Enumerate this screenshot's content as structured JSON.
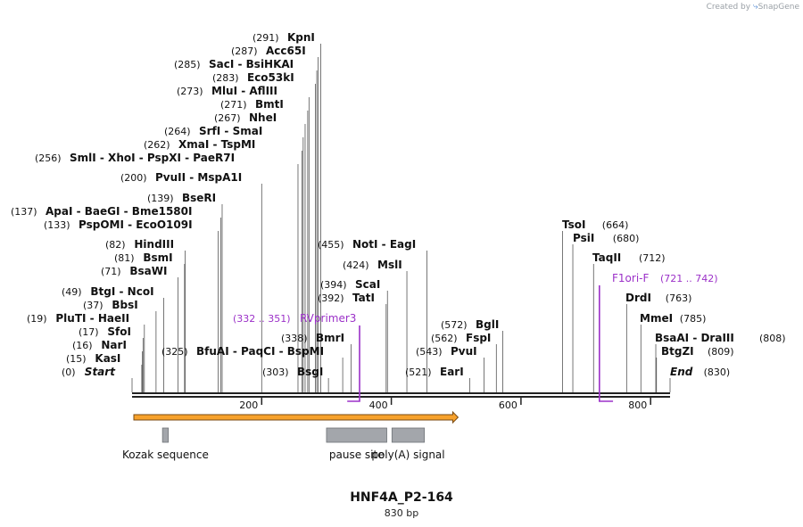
{
  "watermark": {
    "prefix": "Created by",
    "brand": "SnapGene"
  },
  "title": "HNF4A_P2-164",
  "length_label": "830 bp",
  "sequence_length": 830,
  "ruler": {
    "ticks": [
      "200",
      "400",
      "600",
      "800"
    ]
  },
  "colors": {
    "backbone": "#222222",
    "primer": "#9b30c8",
    "arrow_fill": "#f7a12b",
    "feature_box": "#a3a6ab",
    "leader": "#555555"
  },
  "sites": [
    {
      "pos": "(0)",
      "names": [
        "Start"
      ],
      "bp": 0,
      "italic": true
    },
    {
      "pos": "(15)",
      "names": [
        "KasI"
      ],
      "bp": 15
    },
    {
      "pos": "(16)",
      "names": [
        "NarI"
      ],
      "bp": 16
    },
    {
      "pos": "(17)",
      "names": [
        "SfoI"
      ],
      "bp": 17
    },
    {
      "pos": "(19)",
      "names": [
        "PluTI",
        "HaeII"
      ],
      "bp": 19
    },
    {
      "pos": "(37)",
      "names": [
        "BbsI"
      ],
      "bp": 37
    },
    {
      "pos": "(49)",
      "names": [
        "BtgI",
        "NcoI"
      ],
      "bp": 49
    },
    {
      "pos": "(71)",
      "names": [
        "BsaWI"
      ],
      "bp": 71
    },
    {
      "pos": "(81)",
      "names": [
        "BsmI"
      ],
      "bp": 81
    },
    {
      "pos": "(82)",
      "names": [
        "HindIII"
      ],
      "bp": 82
    },
    {
      "pos": "(133)",
      "names": [
        "PspOMI",
        "EcoO109I"
      ],
      "bp": 133
    },
    {
      "pos": "(137)",
      "names": [
        "ApaI",
        "BaeGI",
        "Bme1580I"
      ],
      "bp": 137
    },
    {
      "pos": "(139)",
      "names": [
        "BseRI"
      ],
      "bp": 139
    },
    {
      "pos": "(200)",
      "names": [
        "PvuII",
        "MspA1I"
      ],
      "bp": 200
    },
    {
      "pos": "(256)",
      "names": [
        "SmlI",
        "XhoI",
        "PspXI",
        "PaeR7I"
      ],
      "bp": 256
    },
    {
      "pos": "(262)",
      "names": [
        "XmaI",
        "TspMI"
      ],
      "bp": 262
    },
    {
      "pos": "(264)",
      "names": [
        "SrfI",
        "SmaI"
      ],
      "bp": 264
    },
    {
      "pos": "(267)",
      "names": [
        "NheI"
      ],
      "bp": 267
    },
    {
      "pos": "(271)",
      "names": [
        "BmtI"
      ],
      "bp": 271
    },
    {
      "pos": "(273)",
      "names": [
        "MluI",
        "AflIII"
      ],
      "bp": 273
    },
    {
      "pos": "(283)",
      "names": [
        "Eco53kI"
      ],
      "bp": 283
    },
    {
      "pos": "(285)",
      "names": [
        "SacI",
        "BsiHKAI"
      ],
      "bp": 285
    },
    {
      "pos": "(287)",
      "names": [
        "Acc65I"
      ],
      "bp": 287
    },
    {
      "pos": "(291)",
      "names": [
        "KpnI"
      ],
      "bp": 291
    },
    {
      "pos": "(325)",
      "names": [
        "BfuAI",
        "PaqCI",
        "BspMI"
      ],
      "bp": 325
    },
    {
      "pos": "(303)",
      "names": [
        "BsgI"
      ],
      "bp": 303
    },
    {
      "pos": "(338)",
      "names": [
        "BmrI"
      ],
      "bp": 338
    },
    {
      "pos": "(392)",
      "names": [
        "TatI"
      ],
      "bp": 392
    },
    {
      "pos": "(394)",
      "names": [
        "ScaI"
      ],
      "bp": 394
    },
    {
      "pos": "(424)",
      "names": [
        "MslI"
      ],
      "bp": 424
    },
    {
      "pos": "(455)",
      "names": [
        "NotI",
        "EagI"
      ],
      "bp": 455
    },
    {
      "pos": "(521)",
      "names": [
        "EarI"
      ],
      "bp": 521
    },
    {
      "pos": "(543)",
      "names": [
        "PvuI"
      ],
      "bp": 543
    },
    {
      "pos": "(562)",
      "names": [
        "FspI"
      ],
      "bp": 562
    },
    {
      "pos": "(572)",
      "names": [
        "BglI"
      ],
      "bp": 572
    },
    {
      "pos": "(664)",
      "names": [
        "TsoI"
      ],
      "bp": 664
    },
    {
      "pos": "(680)",
      "names": [
        "PsiI"
      ],
      "bp": 680
    },
    {
      "pos": "(712)",
      "names": [
        "TaqII"
      ],
      "bp": 712
    },
    {
      "pos": "(763)",
      "names": [
        "DrdI"
      ],
      "bp": 763
    },
    {
      "pos": "(785)",
      "names": [
        "MmeI"
      ],
      "bp": 785
    },
    {
      "pos": "(808)",
      "names": [
        "BsaAI",
        "DraIII"
      ],
      "bp": 808
    },
    {
      "pos": "(809)",
      "names": [
        "BtgZI"
      ],
      "bp": 809
    },
    {
      "pos": "(830)",
      "names": [
        "End"
      ],
      "bp": 830,
      "italic": true
    }
  ],
  "primers": [
    {
      "name": "RVprimer3",
      "range": "(332 .. 351)",
      "start": 332,
      "end": 351
    },
    {
      "name": "F1ori-F",
      "range": "(721 .. 742)",
      "start": 721,
      "end": 742
    }
  ],
  "features": [
    {
      "name": "Kozak sequence",
      "start": 47,
      "end": 56
    },
    {
      "name": "pause site",
      "start": 300,
      "end": 393
    },
    {
      "name": "poly(A) signal",
      "start": 401,
      "end": 451
    }
  ],
  "orf": {
    "start": 0,
    "end": 503
  }
}
